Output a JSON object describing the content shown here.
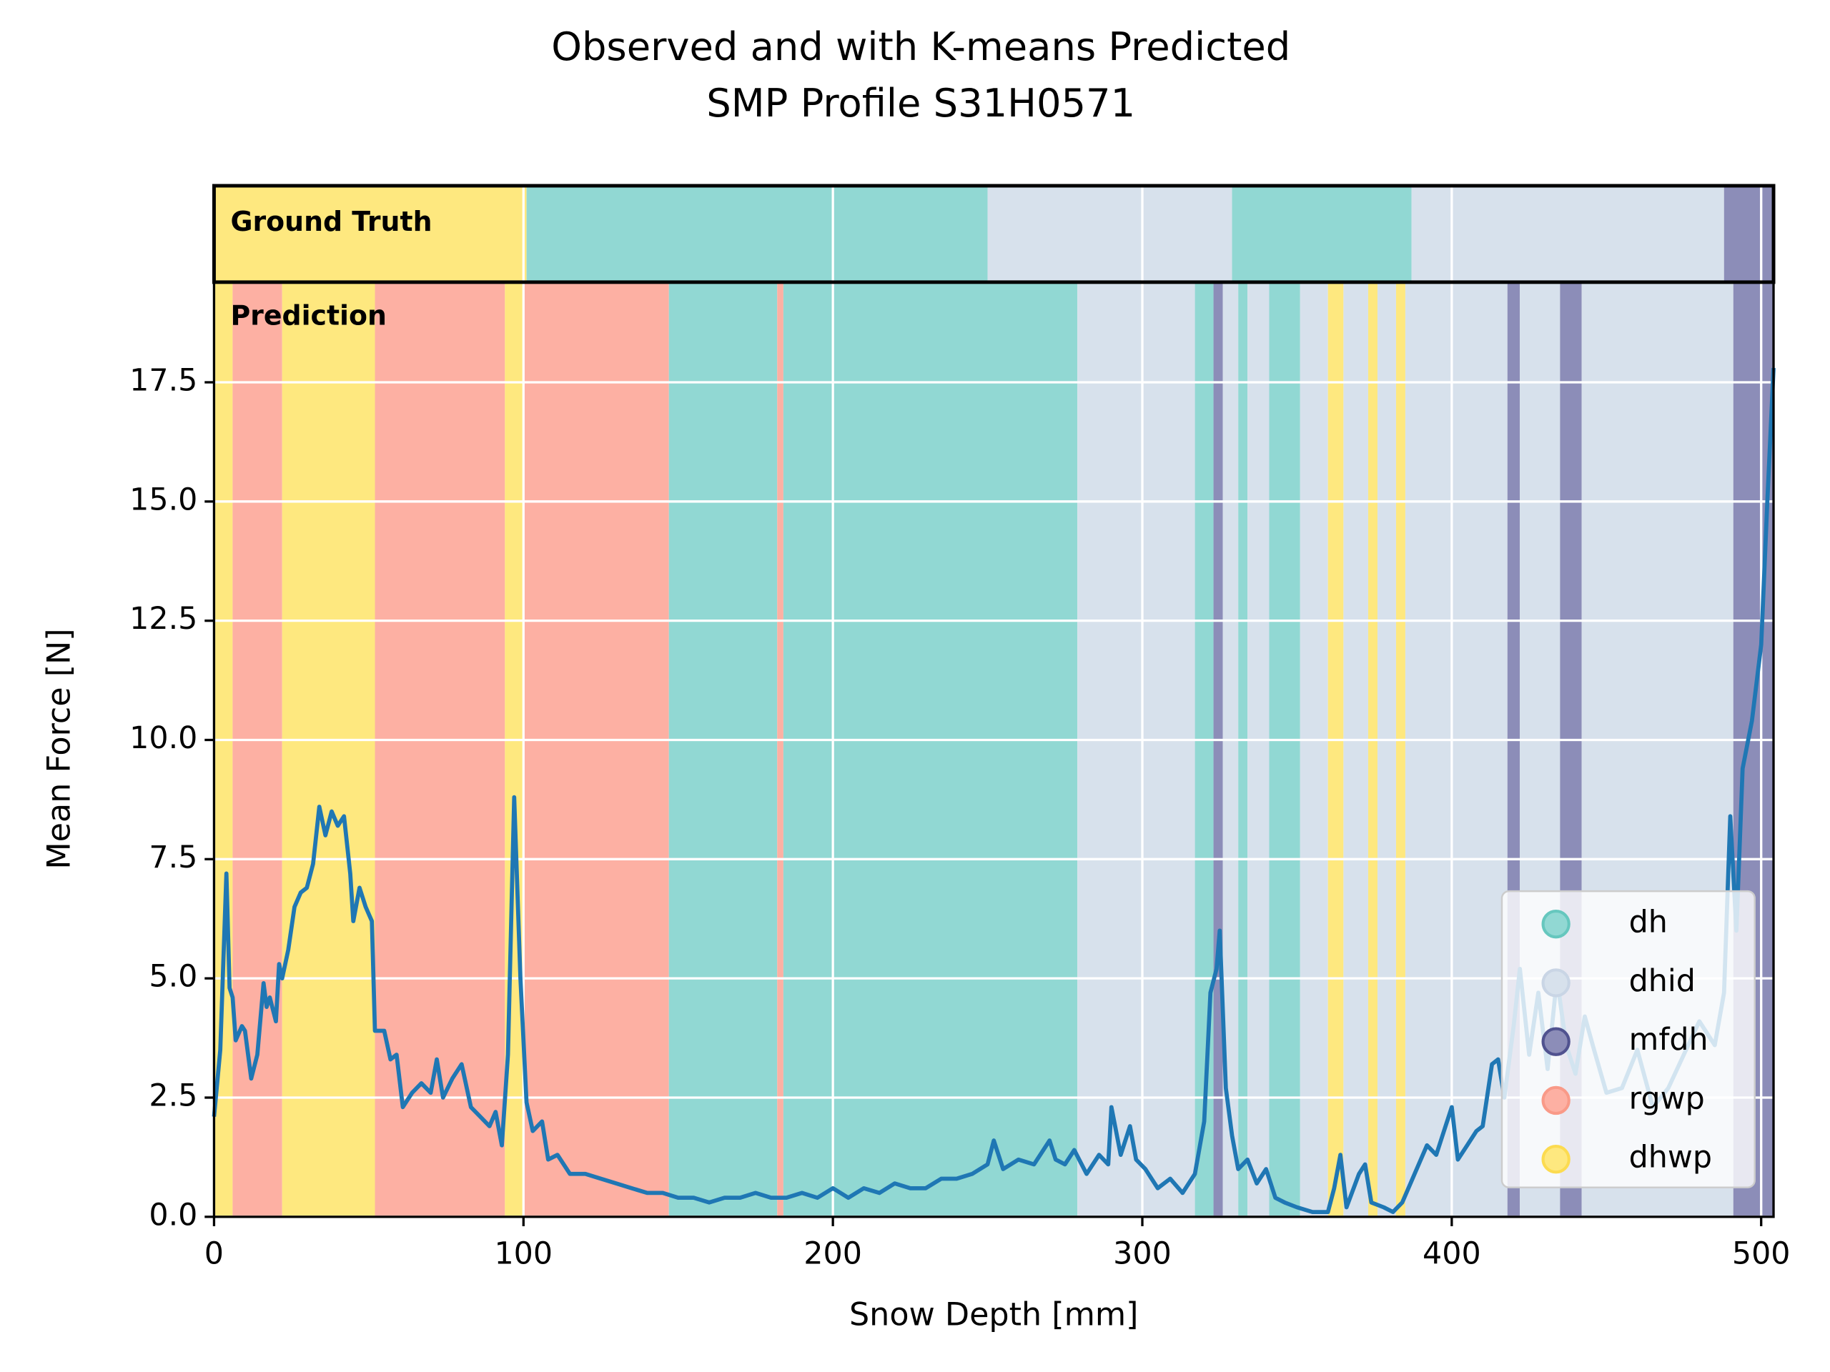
{
  "chart_data": {
    "type": "line",
    "title": "Observed and with K-means Predicted",
    "subtitle": "SMP Profile S31H0571",
    "x_label": "Snow Depth [mm]",
    "y_label": "Mean Force [N]",
    "xlim": [
      0,
      504
    ],
    "ylim": [
      0,
      19.6
    ],
    "xticks": [
      0,
      100,
      200,
      300,
      400,
      500
    ],
    "yticks": [
      {
        "value": 0,
        "label": "0.0"
      },
      2.5,
      {
        "value": 5,
        "label": "5.0"
      },
      7.5,
      {
        "value": 10,
        "label": "10.0"
      },
      12.5,
      {
        "value": 15,
        "label": "15.0"
      },
      17.5
    ],
    "grid": true,
    "legend": "lower right",
    "classes": [
      {
        "name": "dh",
        "color": "#91d8d3",
        "marker": "#66c7be"
      },
      {
        "name": "dhid",
        "color": "#d7e1ec",
        "marker": "#c9d5e5"
      },
      {
        "name": "mfdh",
        "color": "#8c8db8",
        "marker": "#50528f"
      },
      {
        "name": "rgwp",
        "color": "#fdb0a3",
        "marker": "#f99a88"
      },
      {
        "name": "dhwp",
        "color": "#fee87f",
        "marker": "#fcdb50"
      }
    ],
    "ground_truth": {
      "label": "Ground Truth",
      "segments": [
        {
          "start": 0,
          "end": 101,
          "class": "dhwp"
        },
        {
          "start": 101,
          "end": 250,
          "class": "dh"
        },
        {
          "start": 250,
          "end": 329,
          "class": "dhid"
        },
        {
          "start": 329,
          "end": 387,
          "class": "dh"
        },
        {
          "start": 387,
          "end": 488,
          "class": "dhid"
        },
        {
          "start": 488,
          "end": 504,
          "class": "mfdh"
        }
      ]
    },
    "prediction": {
      "label": "Prediction",
      "segments": [
        {
          "start": 0,
          "end": 6,
          "class": "dhwp"
        },
        {
          "start": 6,
          "end": 22,
          "class": "rgwp"
        },
        {
          "start": 22,
          "end": 52,
          "class": "dhwp"
        },
        {
          "start": 52,
          "end": 94,
          "class": "rgwp"
        },
        {
          "start": 94,
          "end": 100,
          "class": "dhwp"
        },
        {
          "start": 100,
          "end": 147,
          "class": "rgwp"
        },
        {
          "start": 147,
          "end": 182,
          "class": "dh"
        },
        {
          "start": 182,
          "end": 184,
          "class": "rgwp"
        },
        {
          "start": 184,
          "end": 279,
          "class": "dh"
        },
        {
          "start": 279,
          "end": 317,
          "class": "dhid"
        },
        {
          "start": 317,
          "end": 323,
          "class": "dh"
        },
        {
          "start": 323,
          "end": 326,
          "class": "mfdh"
        },
        {
          "start": 326,
          "end": 331,
          "class": "dhid"
        },
        {
          "start": 331,
          "end": 334,
          "class": "dh"
        },
        {
          "start": 334,
          "end": 341,
          "class": "dhid"
        },
        {
          "start": 341,
          "end": 351,
          "class": "dh"
        },
        {
          "start": 351,
          "end": 360,
          "class": "dhid"
        },
        {
          "start": 360,
          "end": 365,
          "class": "dhwp"
        },
        {
          "start": 365,
          "end": 373,
          "class": "dhid"
        },
        {
          "start": 373,
          "end": 376,
          "class": "dhwp"
        },
        {
          "start": 376,
          "end": 382,
          "class": "dhid"
        },
        {
          "start": 382,
          "end": 385,
          "class": "dhwp"
        },
        {
          "start": 385,
          "end": 418,
          "class": "dhid"
        },
        {
          "start": 418,
          "end": 422,
          "class": "mfdh"
        },
        {
          "start": 422,
          "end": 435,
          "class": "dhid"
        },
        {
          "start": 435,
          "end": 442,
          "class": "mfdh"
        },
        {
          "start": 442,
          "end": 491,
          "class": "dhid"
        },
        {
          "start": 491,
          "end": 504,
          "class": "mfdh"
        }
      ]
    },
    "x": [
      0,
      2,
      4,
      5,
      6,
      7,
      9,
      10,
      12,
      14,
      16,
      17,
      18,
      20,
      21,
      22,
      24,
      26,
      28,
      30,
      32,
      34,
      36,
      38,
      40,
      42,
      44,
      45,
      47,
      49,
      51,
      52,
      55,
      57,
      59,
      61,
      64,
      67,
      70,
      72,
      74,
      77,
      80,
      83,
      86,
      89,
      91,
      93,
      95,
      97,
      99,
      101,
      103,
      106,
      108,
      111,
      115,
      120,
      125,
      130,
      135,
      140,
      145,
      150,
      155,
      160,
      165,
      170,
      175,
      180,
      185,
      190,
      195,
      200,
      205,
      210,
      215,
      220,
      225,
      230,
      235,
      240,
      245,
      250,
      252,
      255,
      260,
      265,
      270,
      272,
      275,
      278,
      282,
      286,
      289,
      290,
      293,
      296,
      298,
      301,
      305,
      309,
      313,
      317,
      320,
      322,
      324,
      325,
      327,
      329,
      331,
      334,
      337,
      340,
      343,
      346,
      350,
      355,
      360,
      362,
      364,
      366,
      370,
      372,
      374,
      378,
      381,
      384,
      388,
      392,
      395,
      398,
      400,
      402,
      405,
      408,
      410,
      413,
      415,
      417,
      420,
      422,
      425,
      428,
      431,
      434,
      437,
      440,
      443,
      446,
      450,
      455,
      460,
      465,
      470,
      475,
      480,
      485,
      488,
      490,
      492,
      494,
      497,
      500,
      502,
      504
    ],
    "series": [
      {
        "color": "#1f77b4",
        "values": [
          2.1,
          3.5,
          7.2,
          4.8,
          4.6,
          3.7,
          4.0,
          3.9,
          2.9,
          3.4,
          4.9,
          4.4,
          4.6,
          4.1,
          5.3,
          5.0,
          5.6,
          6.5,
          6.8,
          6.9,
          7.4,
          8.6,
          8.0,
          8.5,
          8.2,
          8.4,
          7.2,
          6.2,
          6.9,
          6.5,
          6.2,
          3.9,
          3.9,
          3.3,
          3.4,
          2.3,
          2.6,
          2.8,
          2.6,
          3.3,
          2.5,
          2.9,
          3.2,
          2.3,
          2.1,
          1.9,
          2.2,
          1.5,
          3.4,
          8.8,
          5.0,
          2.4,
          1.8,
          2.0,
          1.2,
          1.3,
          0.9,
          0.9,
          0.8,
          0.7,
          0.6,
          0.5,
          0.5,
          0.4,
          0.4,
          0.3,
          0.4,
          0.4,
          0.5,
          0.4,
          0.4,
          0.5,
          0.4,
          0.6,
          0.4,
          0.6,
          0.5,
          0.7,
          0.6,
          0.6,
          0.8,
          0.8,
          0.9,
          1.1,
          1.6,
          1.0,
          1.2,
          1.1,
          1.6,
          1.2,
          1.1,
          1.4,
          0.9,
          1.3,
          1.1,
          2.3,
          1.3,
          1.9,
          1.2,
          1.0,
          0.6,
          0.8,
          0.5,
          0.9,
          2.0,
          4.7,
          5.2,
          6.0,
          2.7,
          1.7,
          1.0,
          1.2,
          0.7,
          1.0,
          0.4,
          0.3,
          0.2,
          0.1,
          0.1,
          0.6,
          1.3,
          0.2,
          0.9,
          1.1,
          0.3,
          0.2,
          0.1,
          0.3,
          0.9,
          1.5,
          1.3,
          1.9,
          2.3,
          1.2,
          1.5,
          1.8,
          1.9,
          3.2,
          3.3,
          2.5,
          4.0,
          5.2,
          3.4,
          4.7,
          3.1,
          5.0,
          3.6,
          3.0,
          4.2,
          3.5,
          2.6,
          2.7,
          3.5,
          2.3,
          2.7,
          3.4,
          4.1,
          3.6,
          4.7,
          8.4,
          6.0,
          9.4,
          10.4,
          12.0,
          15.0,
          17.8
        ]
      }
    ]
  }
}
